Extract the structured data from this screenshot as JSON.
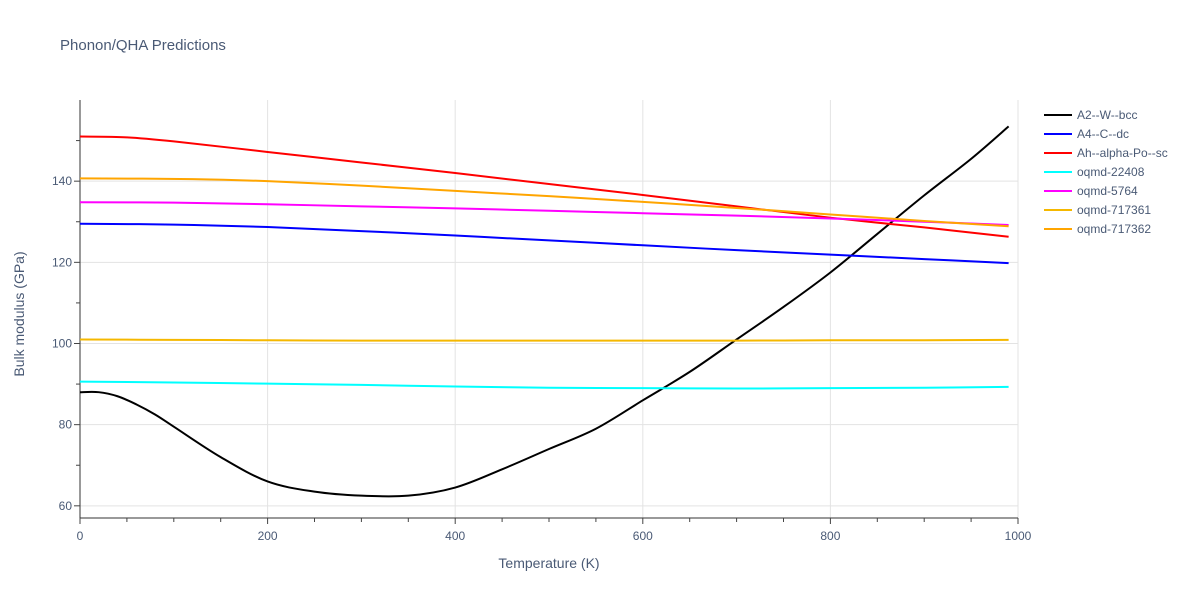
{
  "chart_data": {
    "type": "line",
    "title": "Phonon/QHA Predictions",
    "xlabel": "Temperature (K)",
    "ylabel": "Bulk modulus (GPa)",
    "xlim": [
      0,
      1000
    ],
    "ylim": [
      57,
      160
    ],
    "xticks": [
      0,
      200,
      400,
      600,
      800,
      1000
    ],
    "yticks": [
      60,
      80,
      100,
      120,
      140
    ],
    "grid": true,
    "legend_position": "top-right",
    "series": [
      {
        "name": "A2--W--bcc",
        "color": "#000000",
        "x": [
          0,
          20,
          40,
          60,
          80,
          100,
          150,
          200,
          250,
          300,
          350,
          400,
          450,
          500,
          550,
          600,
          650,
          700,
          750,
          800,
          850,
          900,
          950,
          990
        ],
        "y": [
          88,
          88,
          87,
          85,
          82.5,
          79.5,
          72,
          66,
          63.5,
          62.5,
          62.5,
          64.5,
          69,
          74,
          79,
          86,
          93,
          101,
          109,
          117.5,
          127,
          136.5,
          145.5,
          153.5
        ]
      },
      {
        "name": "A4--C--dc",
        "color": "#0000ff",
        "x": [
          0,
          100,
          200,
          300,
          400,
          500,
          600,
          700,
          800,
          900,
          990
        ],
        "y": [
          129.5,
          129.3,
          128.7,
          127.7,
          126.6,
          125.4,
          124.2,
          123,
          121.9,
          120.8,
          119.8
        ]
      },
      {
        "name": "Ah--alpha-Po--sc",
        "color": "#ff0000",
        "x": [
          0,
          50,
          100,
          200,
          300,
          400,
          500,
          600,
          700,
          800,
          900,
          990
        ],
        "y": [
          151,
          150.8,
          149.8,
          147.2,
          144.6,
          142,
          139.3,
          136.6,
          133.8,
          131,
          128.6,
          126.3
        ]
      },
      {
        "name": "oqmd-22408",
        "color": "#00ffff",
        "x": [
          0,
          100,
          200,
          300,
          400,
          500,
          600,
          700,
          800,
          900,
          990
        ],
        "y": [
          90.6,
          90.4,
          90.1,
          89.8,
          89.4,
          89.1,
          89,
          88.9,
          89,
          89.1,
          89.3
        ]
      },
      {
        "name": "oqmd-5764",
        "color": "#ff00ff",
        "x": [
          0,
          100,
          200,
          300,
          400,
          500,
          600,
          700,
          800,
          900,
          990
        ],
        "y": [
          134.8,
          134.7,
          134.3,
          133.8,
          133.3,
          132.7,
          132.1,
          131.5,
          130.8,
          130,
          129.2
        ]
      },
      {
        "name": "oqmd-717361",
        "color": "#f5b800",
        "x": [
          0,
          100,
          200,
          300,
          400,
          500,
          600,
          700,
          800,
          900,
          990
        ],
        "y": [
          101,
          100.9,
          100.8,
          100.7,
          100.7,
          100.7,
          100.7,
          100.7,
          100.8,
          100.8,
          100.9
        ]
      },
      {
        "name": "oqmd-717362",
        "color": "#ffa500",
        "x": [
          0,
          120,
          200,
          300,
          400,
          500,
          600,
          700,
          800,
          900,
          990
        ],
        "y": [
          140.7,
          140.5,
          140,
          138.9,
          137.6,
          136.3,
          134.9,
          133.4,
          131.8,
          130.2,
          128.9
        ]
      }
    ]
  }
}
